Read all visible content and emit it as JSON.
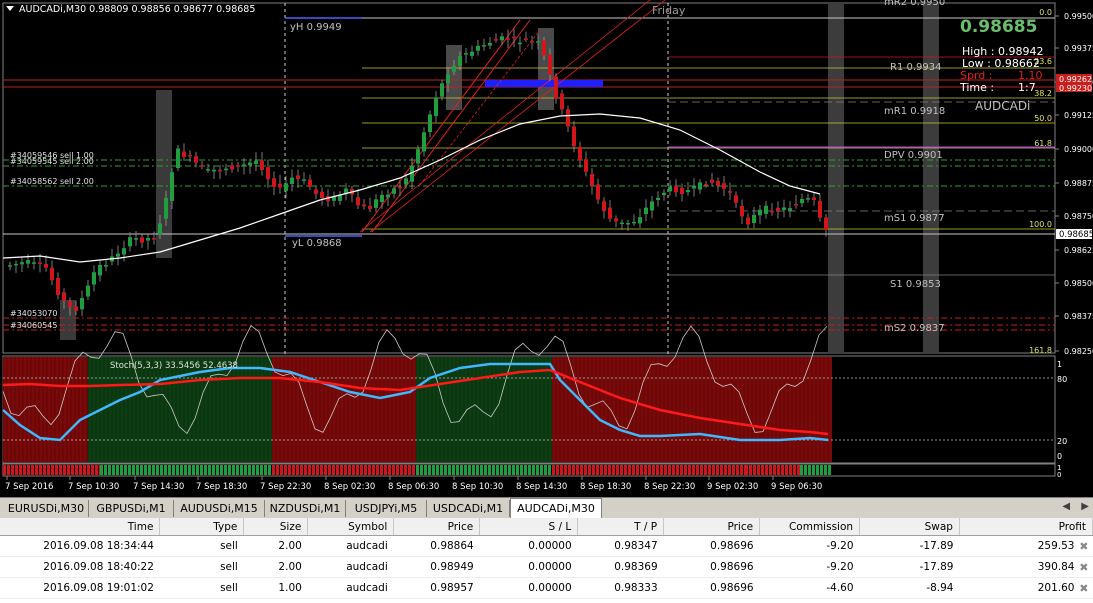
{
  "chart": {
    "title": "AUDCADi,M30  0.98809 0.98856 0.98677 0.98685",
    "day_label": "Friday",
    "symbol_big": "AUDCADi",
    "bid": "0.98685",
    "high_label": "High : 0.98942",
    "low_label": "Low : 0.98662",
    "spread_label": "Sprd :",
    "spread_value": "1.10",
    "time_label": "Time :",
    "time_value": "1:7",
    "price_axis": [
      "0.99500",
      "0.99375",
      "0.99250",
      "0.99125",
      "0.99000",
      "0.98875",
      "0.98750",
      "0.98625",
      "0.98500",
      "0.98375",
      "0.98250"
    ],
    "price_tag_current": "0.98685",
    "price_tag_1": "0.99262",
    "price_tag_2": "0.99230",
    "levels": {
      "yh": "yH 0.9949",
      "yl": "yL 0.9868",
      "mr2": "mR2 0.9950",
      "r1": "R1 0.9934",
      "mr1": "mR1 0.9918",
      "dpv": "DPV 0.9901",
      "ms1": "mS1 0.9877",
      "s1": "S1 0.9853",
      "ms2": "mS2 0.9837"
    },
    "fib": [
      "0.0",
      "23.6",
      "38.2",
      "50.0",
      "61.8",
      "100.0",
      "161.8"
    ],
    "orders": [
      "#34059546 sell 1.00",
      "#34059545 sell 2.00",
      "#34058562 sell 2.00",
      "#34053070",
      "#34060545"
    ],
    "stoch_label": "Stoch(5,3,3) 33.5456 52.4638",
    "stoch_axis": [
      "1",
      "80",
      "20",
      "0"
    ],
    "hist_axis": [
      "1",
      "0"
    ],
    "time_axis": [
      "7 Sep 2016",
      "7 Sep 10:30",
      "7 Sep 14:30",
      "7 Sep 18:30",
      "7 Sep 22:30",
      "8 Sep 02:30",
      "8 Sep 06:30",
      "8 Sep 10:30",
      "8 Sep 14:30",
      "8 Sep 18:30",
      "8 Sep 22:30",
      "9 Sep 02:30",
      "9 Sep 06:30"
    ]
  },
  "tabs": [
    "EURUSDi,M30",
    "GBPUSDi,M1",
    "AUDUSDi,M15",
    "NZDUSDi,M1",
    "USDJPYi,M5",
    "USDCADi,M1",
    "AUDCADi,M30"
  ],
  "active_tab": "AUDCADi,M30",
  "trades": {
    "columns": [
      "Time",
      "Type",
      "Size",
      "Symbol",
      "Price",
      "S / L",
      "T / P",
      "Price",
      "Commission",
      "Swap",
      "Profit"
    ],
    "rows": [
      [
        "2016.09.08 18:34:44",
        "sell",
        "2.00",
        "audcadi",
        "0.98864",
        "0.00000",
        "0.98347",
        "0.98696",
        "-9.20",
        "-17.89",
        "259.53"
      ],
      [
        "2016.09.08 18:40:22",
        "sell",
        "2.00",
        "audcadi",
        "0.98949",
        "0.00000",
        "0.98369",
        "0.98696",
        "-9.20",
        "-17.89",
        "390.84"
      ],
      [
        "2016.09.08 19:01:02",
        "sell",
        "1.00",
        "audcadi",
        "0.98957",
        "0.00000",
        "0.98333",
        "0.98696",
        "-4.60",
        "-8.94",
        "201.60"
      ]
    ]
  },
  "colors": {
    "bull": "#1e9e3e",
    "bear": "#d0161a",
    "bg": "#000000",
    "highlight": "#6ac06a"
  },
  "icons": {
    "close": "close-icon",
    "scroll_left": "arrow-left-icon",
    "scroll_right": "arrow-right-icon"
  }
}
